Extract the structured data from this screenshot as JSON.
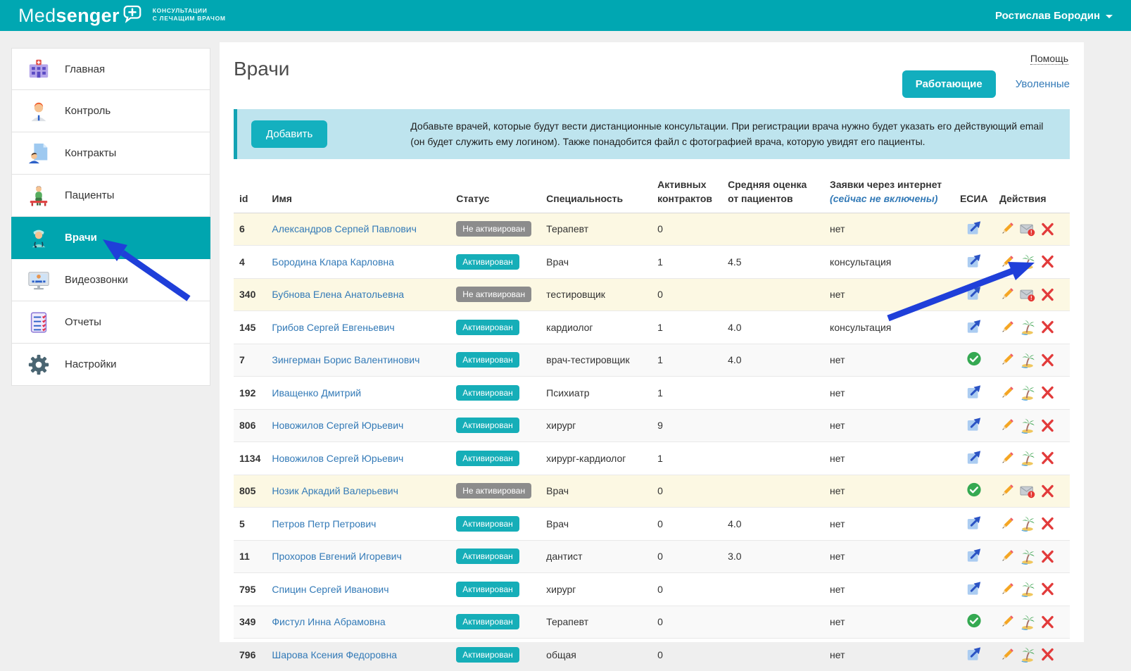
{
  "header": {
    "brand_med": "Med",
    "brand_senger": "senger",
    "tagline_line1": "КОНСУЛЬТАЦИИ",
    "tagline_line2": "С ЛЕЧАЩИМ ВРАЧОМ",
    "user_name": "Ростислав Бородин"
  },
  "sidebar": {
    "items": [
      {
        "label": "Главная",
        "icon": "hospital-icon",
        "active": false
      },
      {
        "label": "Контроль",
        "icon": "person-icon",
        "active": false
      },
      {
        "label": "Контракты",
        "icon": "contract-icon",
        "active": false
      },
      {
        "label": "Пациенты",
        "icon": "patient-icon",
        "active": false
      },
      {
        "label": "Врачи",
        "icon": "doctor-icon",
        "active": true
      },
      {
        "label": "Видеозвонки",
        "icon": "video-call-icon",
        "active": false
      },
      {
        "label": "Отчеты",
        "icon": "report-icon",
        "active": false
      },
      {
        "label": "Настройки",
        "icon": "gear-icon",
        "active": false
      }
    ]
  },
  "page": {
    "title": "Врачи",
    "help_label": "Помощь",
    "tab_working": "Работающие",
    "tab_fired": "Уволенные",
    "add_button": "Добавить",
    "banner_text": "Добавьте врачей, которые будут вести дистанционные консультации. При регистрации врача нужно будет указать его действующий email (он будет служить ему логином). Также понадобится файл с фотографией врача, которую увидят его пациенты."
  },
  "table": {
    "headers": {
      "id": "id",
      "name": "Имя",
      "status": "Статус",
      "specialty": "Специальность",
      "contracts1": "Активных",
      "contracts2": "контрактов",
      "rating1": "Средняя оценка",
      "rating2": "от пациентов",
      "requests1": "Заявки через интернет",
      "requests2": "(сейчас не включены)",
      "esia": "ЕСИА",
      "actions": "Действия"
    },
    "status_labels": {
      "activated": "Активирован",
      "not_activated": "Не активирован"
    },
    "rows": [
      {
        "id": "6",
        "name": "Александров Серпей Павлович",
        "status": "not_activated",
        "specialty": "Терапевт",
        "contracts": "0",
        "rating": "",
        "requests": "нет",
        "esia": "external-link-icon",
        "actions": [
          "edit-pencil-icon",
          "mail-warning-icon",
          "delete-x-icon"
        ]
      },
      {
        "id": "4",
        "name": "Бородина Клара Карловна",
        "status": "activated",
        "specialty": "Врач",
        "contracts": "1",
        "rating": "4.5",
        "requests": "консультация",
        "esia": "external-link-icon",
        "actions": [
          "edit-pencil-icon",
          "vacation-palm-icon",
          "delete-x-icon"
        ]
      },
      {
        "id": "340",
        "name": "Бубнова Елена Анатольевна",
        "status": "not_activated",
        "specialty": "тестировщик",
        "contracts": "0",
        "rating": "",
        "requests": "нет",
        "esia": "external-link-icon",
        "actions": [
          "edit-pencil-icon",
          "mail-warning-icon",
          "delete-x-icon"
        ]
      },
      {
        "id": "145",
        "name": "Грибов Сергей Евгеньевич",
        "status": "activated",
        "specialty": "кардиолог",
        "contracts": "1",
        "rating": "4.0",
        "requests": "консультация",
        "esia": "external-link-icon",
        "actions": [
          "edit-pencil-icon",
          "vacation-palm-icon",
          "delete-x-icon"
        ]
      },
      {
        "id": "7",
        "name": "Зингерман Борис Валентинович",
        "status": "activated",
        "specialty": "врач-тестировщик",
        "contracts": "1",
        "rating": "4.0",
        "requests": "нет",
        "esia": "green-check-icon",
        "actions": [
          "edit-pencil-icon",
          "vacation-palm-icon",
          "delete-x-icon"
        ]
      },
      {
        "id": "192",
        "name": "Иващенко Дмитрий",
        "status": "activated",
        "specialty": "Психиатр",
        "contracts": "1",
        "rating": "",
        "requests": "нет",
        "esia": "external-link-icon",
        "actions": [
          "edit-pencil-icon",
          "vacation-palm-icon",
          "delete-x-icon"
        ]
      },
      {
        "id": "806",
        "name": "Новожилов Сергей Юрьевич",
        "status": "activated",
        "specialty": "хирург",
        "contracts": "9",
        "rating": "",
        "requests": "нет",
        "esia": "external-link-icon",
        "actions": [
          "edit-pencil-icon",
          "vacation-palm-icon",
          "delete-x-icon"
        ]
      },
      {
        "id": "1134",
        "name": "Новожилов Сергей Юрьевич",
        "status": "activated",
        "specialty": "хирург-кардиолог",
        "contracts": "1",
        "rating": "",
        "requests": "нет",
        "esia": "external-link-icon",
        "actions": [
          "edit-pencil-icon",
          "vacation-palm-icon",
          "delete-x-icon"
        ]
      },
      {
        "id": "805",
        "name": "Нозик Аркадий Валерьевич",
        "status": "not_activated",
        "specialty": "Врач",
        "contracts": "0",
        "rating": "",
        "requests": "нет",
        "esia": "green-check-icon",
        "actions": [
          "edit-pencil-icon",
          "mail-warning-icon",
          "delete-x-icon"
        ]
      },
      {
        "id": "5",
        "name": "Петров Петр Петрович",
        "status": "activated",
        "specialty": "Врач",
        "contracts": "0",
        "rating": "4.0",
        "requests": "нет",
        "esia": "external-link-icon",
        "actions": [
          "edit-pencil-icon",
          "vacation-palm-icon",
          "delete-x-icon"
        ]
      },
      {
        "id": "11",
        "name": "Прохоров Евгений Игоревич",
        "status": "activated",
        "specialty": "дантист",
        "contracts": "0",
        "rating": "3.0",
        "requests": "нет",
        "esia": "external-link-icon",
        "actions": [
          "edit-pencil-icon",
          "vacation-palm-icon",
          "delete-x-icon"
        ]
      },
      {
        "id": "795",
        "name": "Спицин Сергей Иванович",
        "status": "activated",
        "specialty": "хирург",
        "contracts": "0",
        "rating": "",
        "requests": "нет",
        "esia": "external-link-icon",
        "actions": [
          "edit-pencil-icon",
          "vacation-palm-icon",
          "delete-x-icon"
        ]
      },
      {
        "id": "349",
        "name": "Фистул Инна Абрамовна",
        "status": "activated",
        "specialty": "Терапевт",
        "contracts": "0",
        "rating": "",
        "requests": "нет",
        "esia": "green-check-icon",
        "actions": [
          "edit-pencil-icon",
          "vacation-palm-icon",
          "delete-x-icon"
        ]
      },
      {
        "id": "796",
        "name": "Шарова Ксения Федоровна",
        "status": "activated",
        "specialty": "общая",
        "contracts": "0",
        "rating": "",
        "requests": "нет",
        "esia": "external-link-icon",
        "actions": [
          "edit-pencil-icon",
          "vacation-palm-icon",
          "delete-x-icon"
        ]
      }
    ]
  },
  "colors": {
    "header_teal": "#00a7b2",
    "active_teal": "#00a5af",
    "button_teal": "#14b0bf",
    "badge_teal": "#16aeb8",
    "badge_gray": "#8c8c8c",
    "banner_blue": "#bee4ee",
    "link_blue": "#337ab7",
    "warning_row": "#fcf8e3",
    "annotation_arrow_blue": "#1f3fd9"
  }
}
